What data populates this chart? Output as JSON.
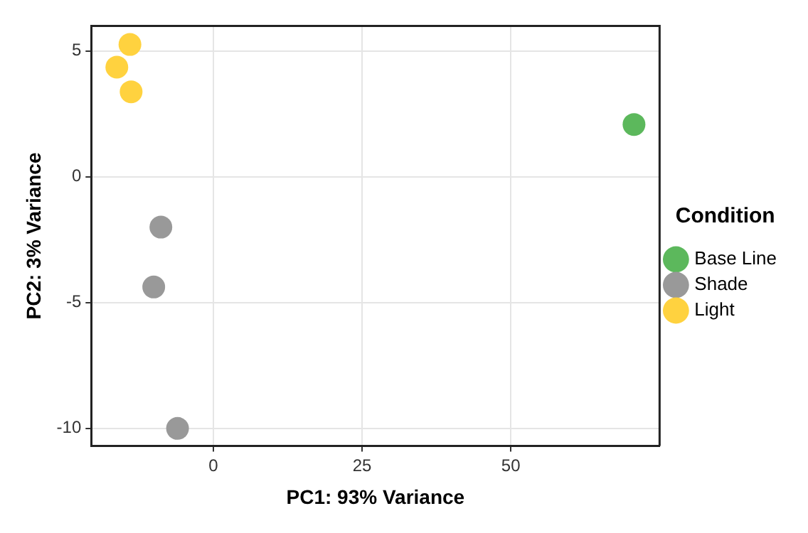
{
  "chart_data": {
    "type": "scatter",
    "xlabel": "PC1: 93% Variance",
    "ylabel": "PC2: 3% Variance",
    "legend_title": "Condition",
    "series": [
      {
        "name": "Base Line",
        "color": "#5cb85c",
        "x": [
          70.7
        ],
        "values": [
          2.08
        ]
      },
      {
        "name": "Shade",
        "color": "#999999",
        "x": [
          -8.8,
          -10.0,
          -6.0
        ],
        "values": [
          -2.0,
          -4.38,
          -10.0
        ]
      },
      {
        "name": "Light",
        "color": "#ffd23f",
        "x": [
          -14.0,
          -16.2,
          -13.8
        ],
        "values": [
          5.26,
          4.36,
          3.38
        ]
      }
    ],
    "xlim": [
      -20.5,
      75
    ],
    "xticks": [
      0,
      25,
      50
    ],
    "ylim": [
      -10.7,
      6.0
    ],
    "yticks": [
      -10,
      -5,
      0,
      5
    ],
    "grid": true,
    "legend": "right",
    "marker": "circle"
  }
}
